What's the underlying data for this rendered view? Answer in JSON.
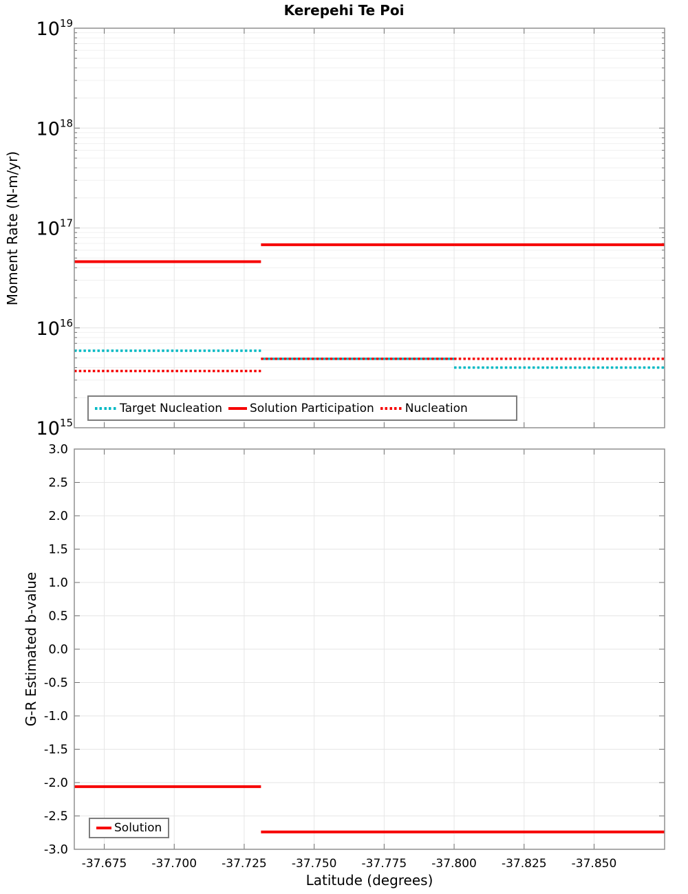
{
  "title": "Kerepehi Te Poi",
  "colors": {
    "red": "#f60000",
    "cyan": "#00b9c4",
    "grid_major": "#e6e6e6",
    "grid_minor": "#f0f0f0",
    "frame": "#8f8f8f",
    "tick": "#6e6e6e",
    "text": "#000000"
  },
  "chart_data": [
    {
      "type": "line",
      "title": "Kerepehi Te Poi",
      "ylabel": "Moment Rate (N-m/yr)",
      "xlabel": "",
      "yscale": "log",
      "ylim": [
        1000000000000000.0,
        1e+19
      ],
      "y_tick_exponents": [
        "19",
        "18",
        "17",
        "16",
        "15"
      ],
      "y_tick_base": "10",
      "xlim": [
        -37.6643,
        -37.8752
      ],
      "x_ticks": [
        -37.675,
        -37.7,
        -37.725,
        -37.75,
        -37.775,
        -37.8,
        -37.825,
        -37.85
      ],
      "grid": true,
      "legend_position": "bottom-left",
      "series": [
        {
          "name": "Target Nucleation",
          "color": "cyan",
          "style": "dotted",
          "segments": [
            {
              "x0": -37.6643,
              "x1": -37.731,
              "y": 5900000000000000.0
            },
            {
              "x0": -37.731,
              "x1": -37.8,
              "y": 4900000000000000.0
            },
            {
              "x0": -37.8,
              "x1": -37.8752,
              "y": 4000000000000000.0
            }
          ]
        },
        {
          "name": "Solution Participation",
          "color": "red",
          "style": "solid",
          "segments": [
            {
              "x0": -37.6643,
              "x1": -37.731,
              "y": 4.6e+16
            },
            {
              "x0": -37.731,
              "x1": -37.8,
              "y": 6.8e+16
            },
            {
              "x0": -37.8,
              "x1": -37.8752,
              "y": 6.8e+16
            }
          ]
        },
        {
          "name": "Nucleation",
          "color": "red",
          "style": "dotted",
          "segments": [
            {
              "x0": -37.6643,
              "x1": -37.731,
              "y": 3700000000000000.0
            },
            {
              "x0": -37.731,
              "x1": -37.8,
              "y": 4900000000000000.0
            },
            {
              "x0": -37.8,
              "x1": -37.8752,
              "y": 4900000000000000.0
            }
          ]
        }
      ]
    },
    {
      "type": "line",
      "ylabel": "G-R Estimated b-value",
      "xlabel": "Latitude (degrees)",
      "yscale": "linear",
      "ylim": [
        -3.0,
        3.0
      ],
      "y_ticks": [
        3.0,
        2.5,
        2.0,
        1.5,
        1.0,
        0.5,
        0.0,
        -0.5,
        -1.0,
        -1.5,
        -2.0,
        -2.5,
        -3.0
      ],
      "y_tick_labels": [
        "3.0",
        "2.5",
        "2.0",
        "1.5",
        "1.0",
        "0.5",
        "0.0",
        "-0.5",
        "-1.0",
        "-1.5",
        "-2.0",
        "-2.5",
        "-3.0"
      ],
      "xlim": [
        -37.6643,
        -37.8752
      ],
      "x_ticks": [
        -37.675,
        -37.7,
        -37.725,
        -37.75,
        -37.775,
        -37.8,
        -37.825,
        -37.85
      ],
      "x_tick_labels": [
        "-37.675",
        "-37.700",
        "-37.725",
        "-37.750",
        "-37.775",
        "-37.800",
        "-37.825",
        "-37.850"
      ],
      "grid": true,
      "legend_position": "bottom-left",
      "series": [
        {
          "name": "Solution",
          "color": "red",
          "style": "solid",
          "segments": [
            {
              "x0": -37.6643,
              "x1": -37.731,
              "y": -2.06
            },
            {
              "x0": -37.731,
              "x1": -37.8,
              "y": -2.74
            },
            {
              "x0": -37.8,
              "x1": -37.8752,
              "y": -2.74
            }
          ]
        }
      ]
    }
  ]
}
